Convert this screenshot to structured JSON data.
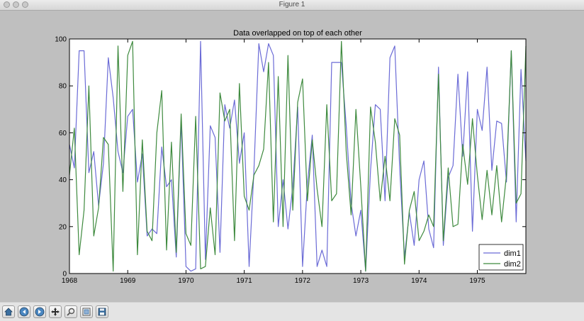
{
  "window": {
    "title": "Figure 1",
    "traffic_lights": [
      "close-dot",
      "minimize-dot",
      "zoom-dot"
    ]
  },
  "toolbar": {
    "buttons": [
      {
        "name": "home-button",
        "icon": "home-icon"
      },
      {
        "name": "back-button",
        "icon": "back-arrow-icon"
      },
      {
        "name": "forward-button",
        "icon": "forward-arrow-icon"
      },
      {
        "name": "pan-button",
        "icon": "pan-icon"
      },
      {
        "name": "zoom-button",
        "icon": "zoom-rect-icon"
      },
      {
        "name": "configure-subplots-button",
        "icon": "subplots-icon"
      },
      {
        "name": "save-button",
        "icon": "save-icon"
      }
    ]
  },
  "colors": {
    "dim1": "#6b6bd6",
    "dim2": "#3e8a3e",
    "axes_bg": "#ffffff",
    "figure_bg": "#bfbfbf"
  },
  "chart_data": {
    "type": "line",
    "title": "Data overlapped on top of each other",
    "xlabel": "",
    "ylabel": "",
    "xlim": [
      "1968-01",
      "1975-11"
    ],
    "ylim": [
      0,
      100
    ],
    "x_ticks": [
      "1968",
      "1969",
      "1970",
      "1971",
      "1972",
      "1973",
      "1974",
      "1975"
    ],
    "y_ticks": [
      0,
      20,
      40,
      60,
      80,
      100
    ],
    "legend_position": "lower-right",
    "grid": false,
    "x": [
      "1968-01",
      "1968-02",
      "1968-03",
      "1968-04",
      "1968-05",
      "1968-06",
      "1968-07",
      "1968-08",
      "1968-09",
      "1968-10",
      "1968-11",
      "1968-12",
      "1969-01",
      "1969-02",
      "1969-03",
      "1969-04",
      "1969-05",
      "1969-06",
      "1969-07",
      "1969-08",
      "1969-09",
      "1969-10",
      "1969-11",
      "1969-12",
      "1970-01",
      "1970-02",
      "1970-03",
      "1970-04",
      "1970-05",
      "1970-06",
      "1970-07",
      "1970-08",
      "1970-09",
      "1970-10",
      "1970-11",
      "1970-12",
      "1971-01",
      "1971-02",
      "1971-03",
      "1971-04",
      "1971-05",
      "1971-06",
      "1971-07",
      "1971-08",
      "1971-09",
      "1971-10",
      "1971-11",
      "1971-12",
      "1972-01",
      "1972-02",
      "1972-03",
      "1972-04",
      "1972-05",
      "1972-06",
      "1972-07",
      "1972-08",
      "1972-09",
      "1972-10",
      "1972-11",
      "1972-12",
      "1973-01",
      "1973-02",
      "1973-03",
      "1973-04",
      "1973-05",
      "1973-06",
      "1973-07",
      "1973-08",
      "1973-09",
      "1973-10",
      "1973-11",
      "1973-12",
      "1974-01",
      "1974-02",
      "1974-03",
      "1974-04",
      "1974-05",
      "1974-06",
      "1974-07",
      "1974-08",
      "1974-09",
      "1974-10",
      "1974-11",
      "1974-12",
      "1975-01",
      "1975-02",
      "1975-03",
      "1975-04",
      "1975-05",
      "1975-06",
      "1975-07",
      "1975-08",
      "1975-09",
      "1975-10",
      "1975-11"
    ],
    "series": [
      {
        "name": "dim1",
        "color": "#6b6bd6",
        "values": [
          55,
          45,
          95,
          95,
          43,
          52,
          29,
          47,
          92,
          75,
          52,
          43,
          67,
          70,
          39,
          51,
          16,
          19,
          17,
          54,
          37,
          40,
          7,
          65,
          3,
          1,
          2,
          99,
          6,
          63,
          58,
          9,
          72,
          62,
          74,
          47,
          60,
          3,
          44,
          98,
          86,
          98,
          93,
          20,
          40,
          19,
          37,
          71,
          3,
          38,
          59,
          3,
          10,
          3,
          90,
          90,
          90,
          63,
          30,
          16,
          27,
          1,
          44,
          72,
          70,
          31,
          92,
          97,
          45,
          7,
          26,
          12,
          40,
          48,
          19,
          11,
          88,
          12,
          41,
          46,
          85,
          50,
          86,
          18,
          70,
          61,
          88,
          44,
          65,
          64,
          39,
          95,
          22,
          87,
          48
        ]
      },
      {
        "name": "dim2",
        "color": "#3e8a3e",
        "values": [
          42,
          62,
          8,
          27,
          80,
          16,
          28,
          58,
          55,
          1,
          97,
          35,
          93,
          99,
          8,
          57,
          18,
          14,
          60,
          78,
          10,
          56,
          9,
          68,
          17,
          12,
          67,
          2,
          3,
          28,
          8,
          77,
          65,
          70,
          14,
          81,
          33,
          27,
          42,
          46,
          53,
          90,
          22,
          84,
          20,
          93,
          27,
          73,
          83,
          31,
          57,
          36,
          20,
          72,
          31,
          34,
          99,
          52,
          25,
          70,
          37,
          1,
          71,
          56,
          31,
          50,
          31,
          66,
          59,
          4,
          27,
          35,
          14,
          18,
          25,
          20,
          85,
          14,
          45,
          20,
          21,
          55,
          38,
          66,
          42,
          23,
          44,
          25,
          46,
          22,
          42,
          95,
          30,
          34,
          97
        ]
      }
    ]
  }
}
